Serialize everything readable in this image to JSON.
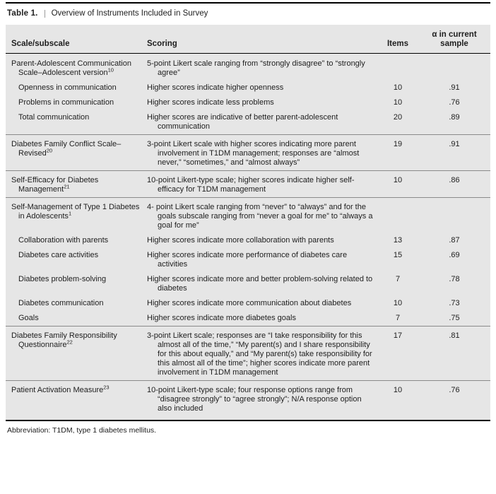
{
  "caption": {
    "label": "Table 1.",
    "title": "Overview of Instruments Included in Survey"
  },
  "table": {
    "headers": {
      "scale": "Scale/subscale",
      "scoring": "Scoring",
      "items": "Items",
      "alpha": "α in current sample"
    },
    "rows": [
      {
        "scale": "Parent-Adolescent Communication Scale–Adolescent version",
        "ref": "10",
        "indent": false,
        "group_start": false,
        "scoring": "5-point Likert scale ranging from “strongly disagree” to “strongly agree”",
        "items": "",
        "alpha": ""
      },
      {
        "scale": "Openness in communication",
        "indent": true,
        "group_start": false,
        "scoring": "Higher scores indicate higher openness",
        "items": "10",
        "alpha": ".91"
      },
      {
        "scale": "Problems in communication",
        "indent": true,
        "group_start": false,
        "scoring": "Higher scores indicate less problems",
        "items": "10",
        "alpha": ".76"
      },
      {
        "scale": "Total communication",
        "indent": true,
        "group_start": false,
        "scoring": "Higher scores are indicative of better parent-adolescent communication",
        "items": "20",
        "alpha": ".89"
      },
      {
        "scale": "Diabetes Family Conflict Scale–Revised",
        "ref": "20",
        "indent": false,
        "group_start": true,
        "scoring": "3-point Likert scale with higher scores indicating more parent involvement in T1DM management; responses are “almost never,” “sometimes,” and “almost always”",
        "items": "19",
        "alpha": ".91"
      },
      {
        "scale": "Self-Efficacy for Diabetes Management",
        "ref": "21",
        "indent": false,
        "group_start": true,
        "scoring": "10-point Likert-type scale; higher scores indicate higher self-efficacy for T1DM management",
        "items": "10",
        "alpha": ".86"
      },
      {
        "scale": "Self-Management of Type 1 Diabetes in Adolescents",
        "ref": "1",
        "indent": false,
        "group_start": true,
        "scoring": "4- point Likert scale ranging from “never” to “always” and for the goals subscale ranging from “never a goal for me” to “always a goal for me”",
        "items": "",
        "alpha": ""
      },
      {
        "scale": "Collaboration with parents",
        "indent": true,
        "group_start": false,
        "scoring": "Higher scores indicate more collaboration with parents",
        "items": "13",
        "alpha": ".87"
      },
      {
        "scale": "Diabetes care activities",
        "indent": true,
        "group_start": false,
        "scoring": "Higher scores indicate more performance of diabetes care activities",
        "items": "15",
        "alpha": ".69"
      },
      {
        "scale": "Diabetes problem-solving",
        "indent": true,
        "group_start": false,
        "scoring": "Higher scores indicate more and better problem-solving related to diabetes",
        "items": "7",
        "alpha": ".78"
      },
      {
        "scale": "Diabetes communication",
        "indent": true,
        "group_start": false,
        "scoring": "Higher scores indicate more communication about diabetes",
        "items": "10",
        "alpha": ".73"
      },
      {
        "scale": "Goals",
        "indent": true,
        "group_start": false,
        "scoring": "Higher scores indicate more diabetes goals",
        "items": "7",
        "alpha": ".75"
      },
      {
        "scale": "Diabetes Family Responsibility Questionnaire",
        "ref": "22",
        "indent": false,
        "group_start": true,
        "scoring": "3-point Likert scale; responses are “I take responsibility for this almost all of the time,” “My parent(s) and I share responsibility for this about equally,” and “My parent(s) take responsibility for this almost all of the time”; higher scores indicate more parent involvement in T1DM management",
        "items": "17",
        "alpha": ".81"
      },
      {
        "scale": "Patient Activation Measure",
        "ref": "23",
        "indent": false,
        "group_start": true,
        "scoring": "10-point Likert-type scale; four response options range from “disagree strongly” to “agree strongly”; N/A response option also included",
        "items": "10",
        "alpha": ".76"
      }
    ]
  },
  "footnote": "Abbreviation: T1DM, type 1 diabetes mellitus."
}
